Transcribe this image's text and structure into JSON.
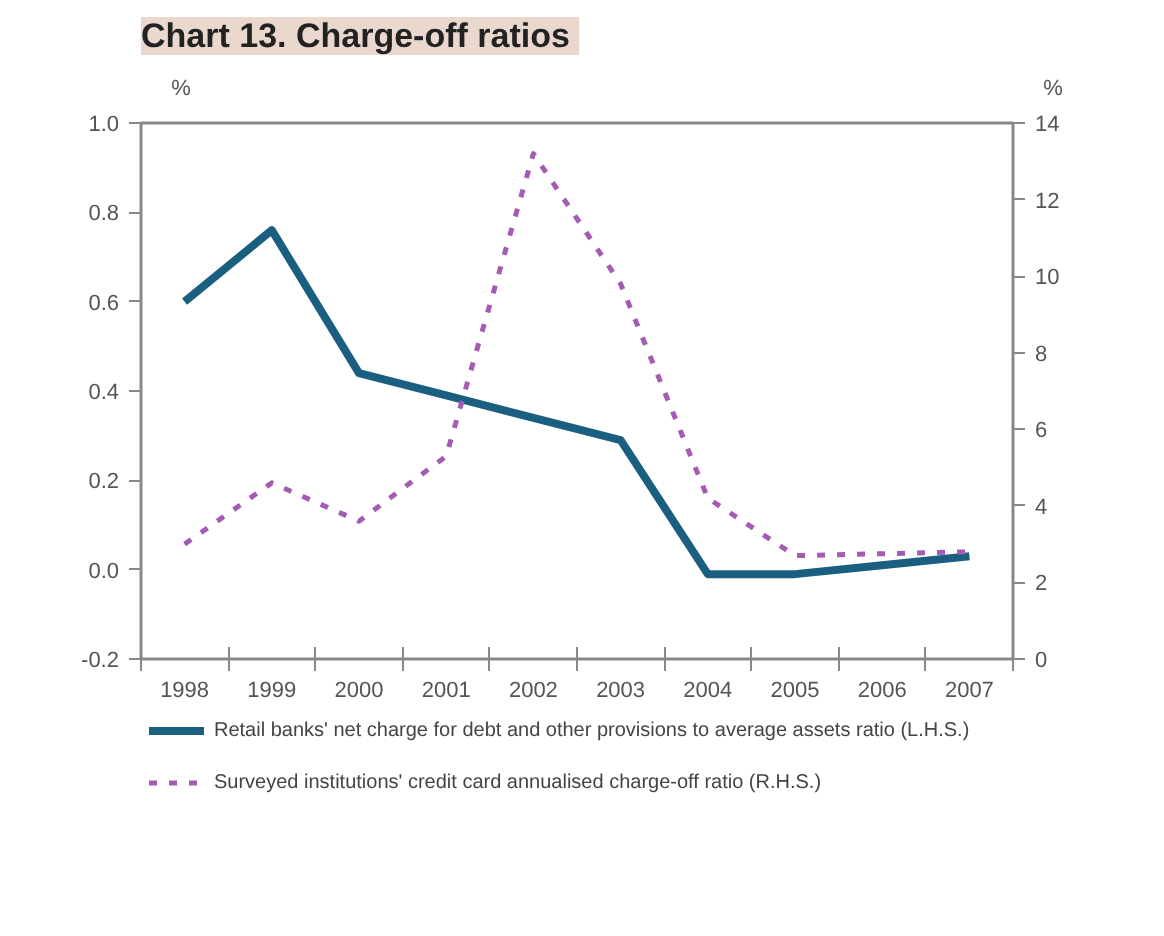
{
  "chart_data": {
    "type": "line",
    "title": "Chart 13.  Charge-off ratios",
    "ylabel": "%",
    "y2label": "%",
    "categories": [
      "1998",
      "1999",
      "2000",
      "2001",
      "2002",
      "2003",
      "2004",
      "2005",
      "2006",
      "2007"
    ],
    "series": [
      {
        "name": "Retail banks' net charge for debt and other provisions to average assets ratio (L.H.S.)",
        "color": "#1b5f80",
        "line_style": "solid",
        "values": [
          0.6,
          0.76,
          0.44,
          0.39,
          0.34,
          0.29,
          -0.01,
          -0.01,
          0.01,
          0.03
        ]
      },
      {
        "name": "Surveyed institutions' credit card annualised charge-off ratio (R.H.S.)",
        "color": "#a45bb3",
        "line_style": "dashed",
        "axis": "y2",
        "values": [
          3.0,
          4.6,
          3.6,
          5.3,
          13.2,
          9.8,
          4.2,
          2.7,
          2.75,
          2.8
        ]
      }
    ],
    "ylim": [
      -0.2,
      1.0
    ],
    "yticks": [
      {
        "value": -0.2,
        "label": "-0.2"
      },
      {
        "value": 0.0,
        "label": "0.0"
      },
      {
        "value": 0.2,
        "label": "0.2"
      },
      {
        "value": 0.4,
        "label": "0.4"
      },
      {
        "value": 0.6,
        "label": "0.6"
      },
      {
        "value": 0.8,
        "label": "0.8"
      },
      {
        "value": 1.0,
        "label": "1.0"
      }
    ],
    "y2lim": [
      0,
      14
    ],
    "y2ticks": [
      0,
      2,
      4,
      6,
      8,
      10,
      12,
      14
    ],
    "grid": false,
    "legend": "bottom",
    "marker": "none"
  }
}
